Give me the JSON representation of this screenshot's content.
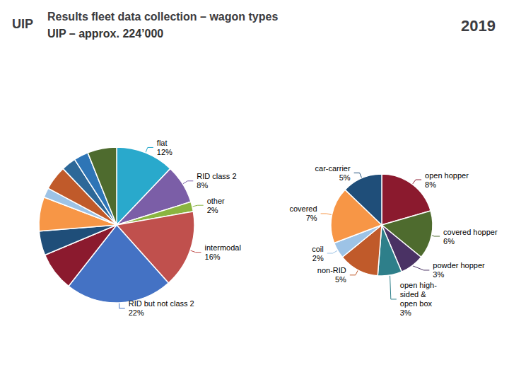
{
  "chart_data": [
    {
      "type": "pie",
      "title": "Results fleet data collection – wagon types",
      "subtitle": "UIP – approx. 224’000",
      "annotations": [
        "UIP",
        "2019"
      ],
      "categories": [
        "flat",
        "RID class 2",
        "other",
        "intermodal",
        "RID but not class 2",
        null,
        null,
        null,
        null,
        null,
        null,
        null,
        null
      ],
      "values": [
        12,
        8,
        2,
        16,
        22,
        8,
        5,
        7,
        2,
        5,
        3,
        3,
        6
      ],
      "value_labels": [
        "12%",
        "8%",
        "2%",
        "16%",
        "22%",
        null,
        null,
        null,
        null,
        null,
        null,
        null,
        null
      ],
      "colors": [
        "#29a9cc",
        "#7b5ea7",
        "#8ab440",
        "#c0504d",
        "#4472c4",
        "#8b1a2e",
        "#1f4e79",
        "#f79646",
        "#9dc3e6",
        "#c05a2a",
        "#2d6898",
        "#2e75b6",
        "#4e6b2e"
      ],
      "data_labels": true
    },
    {
      "type": "pie",
      "categories": [
        "open hopper",
        "covered hopper",
        "powder hopper",
        "open high-\nsided &\nopen box",
        "non-RID",
        "coil",
        "covered",
        "car-carrier"
      ],
      "values": [
        8,
        6,
        3,
        3,
        5,
        2,
        7,
        5
      ],
      "value_labels": [
        "8%",
        "6%",
        "3%",
        "3%",
        "5%",
        "2%",
        "7%",
        "5%"
      ],
      "colors": [
        "#8b1a2e",
        "#4e6b2e",
        "#4a3264",
        "#2e7f8a",
        "#c05a2a",
        "#9dc3e6",
        "#f79646",
        "#1f4e79"
      ],
      "data_labels": true
    }
  ]
}
